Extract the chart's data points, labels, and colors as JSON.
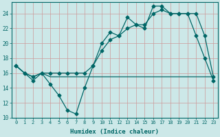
{
  "xlabel": "Humidex (Indice chaleur)",
  "bg_color": "#cce8e8",
  "line_color": "#006666",
  "grid_color": "#aacccc",
  "xlim": [
    -0.5,
    23.5
  ],
  "ylim": [
    10,
    25.5
  ],
  "xticks": [
    0,
    1,
    2,
    3,
    4,
    5,
    6,
    7,
    8,
    9,
    10,
    11,
    12,
    13,
    14,
    15,
    16,
    17,
    18,
    19,
    20,
    21,
    22,
    23
  ],
  "yticks": [
    10,
    12,
    14,
    16,
    18,
    20,
    22,
    24
  ],
  "line1_x": [
    0,
    1,
    2,
    3,
    4,
    5,
    6,
    7,
    8,
    9,
    10,
    11,
    12,
    13,
    14,
    15,
    16,
    17,
    18,
    19,
    20,
    21,
    22,
    23
  ],
  "line1_y": [
    17,
    16,
    15,
    16,
    14.5,
    13,
    11,
    10.5,
    14,
    17,
    20,
    21.5,
    21,
    23.5,
    22.5,
    22,
    25,
    25,
    24,
    24,
    24,
    21,
    18,
    15
  ],
  "line2_x": [
    0,
    1,
    2,
    3,
    4,
    5,
    6,
    7,
    8,
    9,
    10,
    11,
    12,
    13,
    14,
    15,
    16,
    17,
    18,
    19,
    20,
    21,
    22,
    23
  ],
  "line2_y": [
    17,
    16,
    15.5,
    16,
    15.5,
    15.5,
    15.5,
    15.5,
    15.5,
    15.5,
    15.5,
    15.5,
    15.5,
    15.5,
    15.5,
    15.5,
    15.5,
    15.5,
    15.5,
    15.5,
    15.5,
    15.5,
    15.5,
    15.5
  ],
  "line3_x": [
    0,
    1,
    2,
    3,
    4,
    5,
    6,
    7,
    8,
    9,
    10,
    11,
    12,
    13,
    14,
    15,
    16,
    17,
    18,
    19,
    20,
    21,
    22,
    23
  ],
  "line3_y": [
    17,
    16,
    15.5,
    16,
    16,
    16,
    16,
    16,
    16,
    17,
    19,
    20.5,
    21,
    22,
    22.5,
    22.5,
    24,
    24.5,
    24,
    24,
    24,
    24,
    21,
    15.5
  ]
}
